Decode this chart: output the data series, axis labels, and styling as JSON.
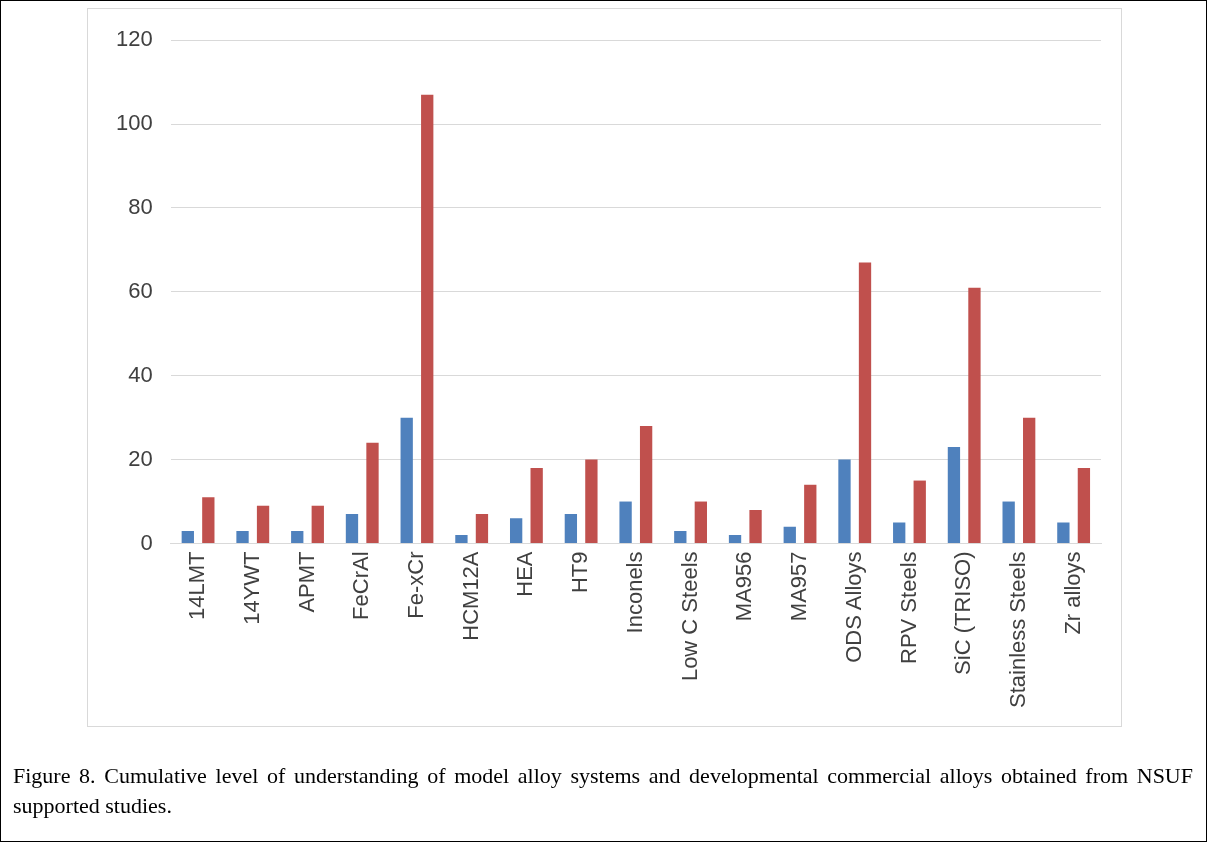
{
  "chart_data": {
    "type": "bar",
    "categories": [
      "14LMT",
      "14YWT",
      "APMT",
      "FeCrAl",
      "Fe-xCr",
      "HCM12A",
      "HEA",
      "HT9",
      "Inconels",
      "Low C Steels",
      "MA956",
      "MA957",
      "ODS Alloys",
      "RPV Steels",
      "SiC (TRISO)",
      "Stainless Steels",
      "Zr alloys"
    ],
    "series": [
      {
        "color": "#4f81bd",
        "values": [
          3,
          3,
          3,
          7,
          30,
          2,
          6,
          7,
          10,
          3,
          2,
          4,
          20,
          5,
          23,
          10,
          5
        ]
      },
      {
        "color": "#c0504d",
        "values": [
          11,
          9,
          9,
          24,
          107,
          7,
          18,
          20,
          28,
          10,
          8,
          14,
          67,
          15,
          61,
          30,
          18
        ]
      }
    ],
    "ylim": [
      0,
      120
    ],
    "yticks": [
      0,
      20,
      40,
      60,
      80,
      100,
      120
    ],
    "grid": "y",
    "legend": false,
    "annotations": [
      "Figure 8. Cumulative level of understanding of model alloy systems and developmental commercial alloys obtained from NSUF supported studies."
    ]
  }
}
